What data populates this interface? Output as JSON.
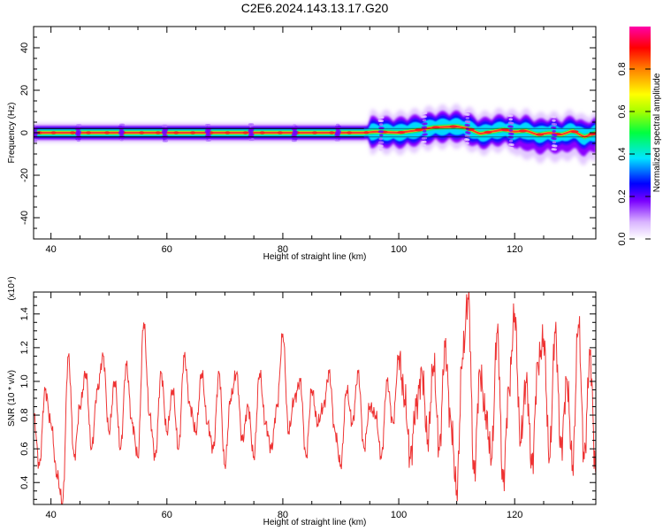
{
  "title": "C2E6.2024.143.13.17.G20",
  "chart_data": [
    {
      "type": "heatmap",
      "xlabel": "Height of straight line (km)",
      "ylabel": "Frequency (Hz)",
      "xlim": [
        37,
        134
      ],
      "ylim": [
        -50,
        50
      ],
      "x_ticks": [
        40,
        60,
        80,
        100,
        120
      ],
      "y_ticks": [
        -40,
        -20,
        0,
        20,
        40
      ],
      "colorbar": {
        "label": "Normalized spectral amplitude",
        "range": [
          0,
          1
        ],
        "ticks": [
          "0.0",
          "0.2",
          "0.4",
          "0.6",
          "0.8"
        ]
      },
      "reference_band": [
        -2,
        2
      ],
      "ridge_center": [
        {
          "x": 37,
          "y": 0
        },
        {
          "x": 94,
          "y": 0
        },
        {
          "x": 96,
          "y": 0.5
        },
        {
          "x": 100,
          "y": 0
        },
        {
          "x": 104,
          "y": 1.5
        },
        {
          "x": 106,
          "y": 2.5
        },
        {
          "x": 110,
          "y": 3
        },
        {
          "x": 112,
          "y": 2
        },
        {
          "x": 114,
          "y": -0.5
        },
        {
          "x": 116,
          "y": 0.5
        },
        {
          "x": 118,
          "y": 1.5
        },
        {
          "x": 120,
          "y": 0.5
        },
        {
          "x": 122,
          "y": 1
        },
        {
          "x": 124,
          "y": -1
        },
        {
          "x": 126,
          "y": 0
        },
        {
          "x": 128,
          "y": -1
        },
        {
          "x": 130,
          "y": 1
        },
        {
          "x": 132,
          "y": -2
        },
        {
          "x": 134,
          "y": 0
        }
      ]
    },
    {
      "type": "line",
      "xlabel": "Height of straight line (km)",
      "ylabel": "SNR (10 * v/v)",
      "y_multiplier": "(x10⁴)",
      "xlim": [
        37,
        134
      ],
      "ylim": [
        0.27,
        1.53
      ],
      "x_ticks": [
        40,
        60,
        80,
        100,
        120
      ],
      "y_ticks": [
        "0.4",
        "0.6",
        "0.8",
        "1.0",
        "1.2",
        "1.4"
      ],
      "series_color": "#ee3333",
      "x": [
        37,
        38,
        39,
        40,
        41,
        42,
        43,
        44,
        45,
        46,
        47,
        48,
        49,
        50,
        51,
        52,
        53,
        54,
        55,
        56,
        57,
        58,
        59,
        60,
        61,
        62,
        63,
        64,
        65,
        66,
        67,
        68,
        69,
        70,
        71,
        72,
        73,
        74,
        75,
        76,
        77,
        78,
        79,
        80,
        81,
        82,
        83,
        84,
        85,
        86,
        87,
        88,
        89,
        90,
        91,
        92,
        93,
        94,
        95,
        96,
        97,
        98,
        99,
        100,
        101,
        102,
        103,
        104,
        105,
        106,
        107,
        108,
        109,
        110,
        111,
        112,
        113,
        114,
        115,
        116,
        117,
        118,
        119,
        120,
        121,
        122,
        123,
        124,
        125,
        126,
        127,
        128,
        129,
        130,
        131,
        132,
        133,
        134
      ],
      "values": [
        0.8,
        0.5,
        0.95,
        0.75,
        0.45,
        0.28,
        1.15,
        0.55,
        0.85,
        1.05,
        0.6,
        0.95,
        1.15,
        0.7,
        1.0,
        0.6,
        1.1,
        0.75,
        0.55,
        1.35,
        0.8,
        0.55,
        1.05,
        0.7,
        0.95,
        0.6,
        1.15,
        0.85,
        0.7,
        1.05,
        0.75,
        0.6,
        1.05,
        0.5,
        0.9,
        1.05,
        0.65,
        0.85,
        0.55,
        1.05,
        0.75,
        0.6,
        0.85,
        1.28,
        0.7,
        0.9,
        1.0,
        0.55,
        0.95,
        0.75,
        0.85,
        1.05,
        0.7,
        0.5,
        0.95,
        0.75,
        1.05,
        0.6,
        0.85,
        0.8,
        0.55,
        1.0,
        0.75,
        1.15,
        0.9,
        0.55,
        0.85,
        1.05,
        0.65,
        1.1,
        0.6,
        1.2,
        0.75,
        0.35,
        1.15,
        1.5,
        0.45,
        1.05,
        0.8,
        0.55,
        1.3,
        0.4,
        0.95,
        1.4,
        0.65,
        1.0,
        0.5,
        1.1,
        1.25,
        0.55,
        1.3,
        0.6,
        1.0,
        0.5,
        1.35,
        0.55,
        1.15,
        0.45
      ]
    }
  ]
}
